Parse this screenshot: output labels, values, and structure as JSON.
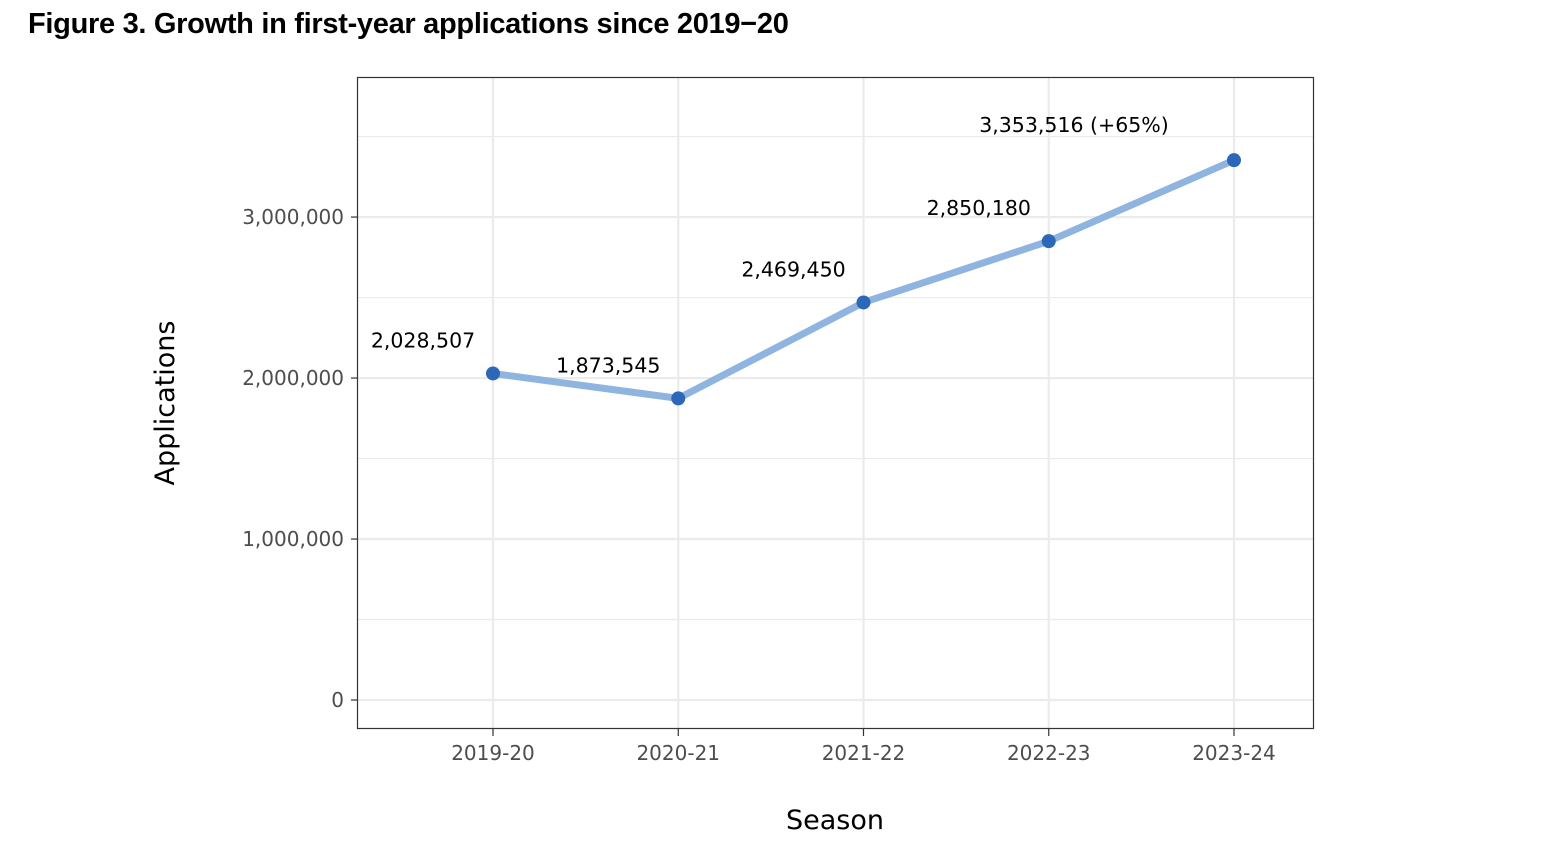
{
  "figure": {
    "title": "Figure 3. Growth in first-year applications since 2019−20"
  },
  "colors": {
    "line": "#8fb4df",
    "point": "#2c67b8",
    "grid": "#ebebeb",
    "frame": "#333333"
  },
  "chart_data": {
    "type": "line",
    "title": "Figure 3. Growth in first-year applications since 2019−20",
    "xlabel": "Season",
    "ylabel": "Applications",
    "categories": [
      "2019-20",
      "2020-21",
      "2021-22",
      "2022-23",
      "2023-24"
    ],
    "series": [
      {
        "name": "Applications",
        "values": [
          2028507,
          1873545,
          2469450,
          2850180,
          3353516
        ]
      }
    ],
    "data_labels": [
      "2,028,507",
      "1,873,545",
      "2,469,450",
      "2,850,180",
      "3,353,516 (+65%)"
    ],
    "ylim": [
      -180000,
      3870000
    ],
    "yticks": [
      0,
      1000000,
      2000000,
      3000000
    ],
    "ytick_labels": [
      "0",
      "1,000,000",
      "2,000,000",
      "3,000,000"
    ],
    "grid": true,
    "legend": "none"
  }
}
